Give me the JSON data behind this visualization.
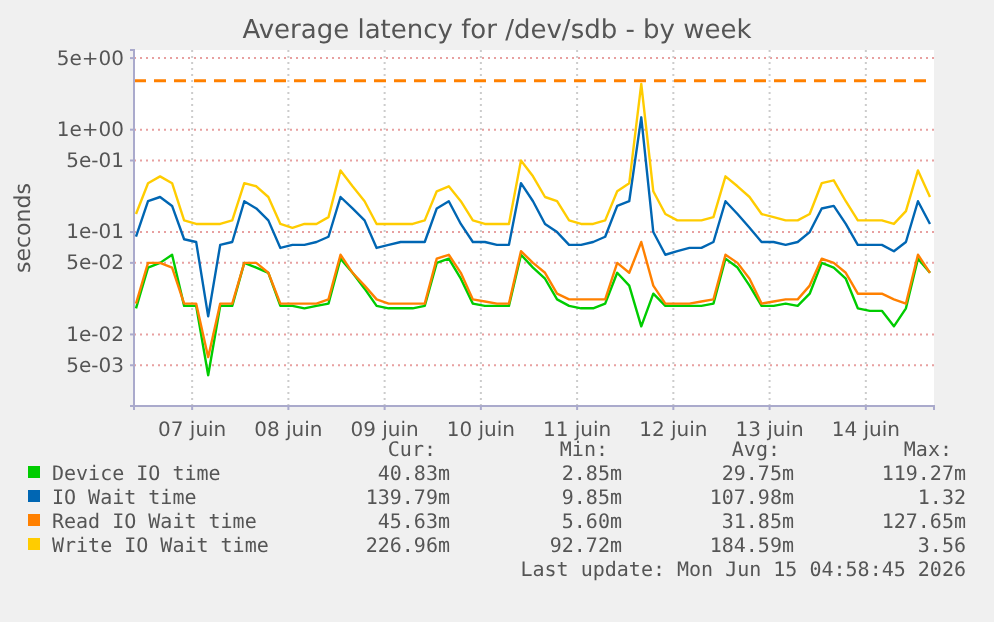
{
  "chart_data": {
    "type": "line",
    "title": "Average latency for /dev/sdb - by week",
    "ylabel": "seconds",
    "log": true,
    "grid": true,
    "legend": "bottom",
    "line_style": "solid",
    "marker": "none",
    "x": [
      "2026-06-06T22:00",
      "2026-06-07T01:00",
      "2026-06-07T04:00",
      "2026-06-07T07:00",
      "2026-06-07T10:00",
      "2026-06-07T13:00",
      "2026-06-07T16:00",
      "2026-06-07T19:00",
      "2026-06-07T22:00",
      "2026-06-08T01:00",
      "2026-06-08T04:00",
      "2026-06-08T07:00",
      "2026-06-08T10:00",
      "2026-06-08T13:00",
      "2026-06-08T16:00",
      "2026-06-08T19:00",
      "2026-06-08T22:00",
      "2026-06-09T01:00",
      "2026-06-09T04:00",
      "2026-06-09T07:00",
      "2026-06-09T10:00",
      "2026-06-09T13:00",
      "2026-06-09T16:00",
      "2026-06-09T19:00",
      "2026-06-09T22:00",
      "2026-06-10T01:00",
      "2026-06-10T04:00",
      "2026-06-10T07:00",
      "2026-06-10T10:00",
      "2026-06-10T13:00",
      "2026-06-10T16:00",
      "2026-06-10T19:00",
      "2026-06-10T22:00",
      "2026-06-11T01:00",
      "2026-06-11T04:00",
      "2026-06-11T07:00",
      "2026-06-11T10:00",
      "2026-06-11T13:00",
      "2026-06-11T16:00",
      "2026-06-11T19:00",
      "2026-06-11T22:00",
      "2026-06-12T01:00",
      "2026-06-12T04:00",
      "2026-06-12T07:00",
      "2026-06-12T10:00",
      "2026-06-12T13:00",
      "2026-06-12T16:00",
      "2026-06-12T19:00",
      "2026-06-12T22:00",
      "2026-06-13T01:00",
      "2026-06-13T04:00",
      "2026-06-13T07:00",
      "2026-06-13T10:00",
      "2026-06-13T13:00",
      "2026-06-13T16:00",
      "2026-06-13T19:00",
      "2026-06-13T22:00",
      "2026-06-14T01:00",
      "2026-06-14T04:00",
      "2026-06-14T07:00",
      "2026-06-14T10:00",
      "2026-06-14T13:00",
      "2026-06-14T16:00",
      "2026-06-14T19:00",
      "2026-06-14T22:00",
      "2026-06-15T01:00",
      "2026-06-15T04:00"
    ],
    "xlim": [
      "2026-06-06T21:30",
      "2026-06-15T05:00"
    ],
    "xticks": [
      {
        "value": "2026-06-07T12:00",
        "label": "07 juin"
      },
      {
        "value": "2026-06-08T12:00",
        "label": "08 juin"
      },
      {
        "value": "2026-06-09T12:00",
        "label": "09 juin"
      },
      {
        "value": "2026-06-10T12:00",
        "label": "10 juin"
      },
      {
        "value": "2026-06-11T12:00",
        "label": "11 juin"
      },
      {
        "value": "2026-06-12T12:00",
        "label": "12 juin"
      },
      {
        "value": "2026-06-13T12:00",
        "label": "13 juin"
      },
      {
        "value": "2026-06-14T12:00",
        "label": "14 juin"
      }
    ],
    "ylim": [
      0.002,
      6
    ],
    "yticks": [
      {
        "value": 5,
        "label": "5e+00"
      },
      {
        "value": 1,
        "label": "1e+00"
      },
      {
        "value": 0.5,
        "label": "5e-01"
      },
      {
        "value": 0.1,
        "label": "1e-01"
      },
      {
        "value": 0.05,
        "label": "5e-02"
      },
      {
        "value": 0.01,
        "label": "1e-02"
      },
      {
        "value": 0.005,
        "label": "5e-03"
      }
    ],
    "ref_lines": [
      {
        "axis": "y",
        "value": 3,
        "color": "#ff8000",
        "line_style": "dashed"
      }
    ],
    "series": [
      {
        "name": "Device IO time",
        "color": "#00cc00",
        "values": [
          0.018,
          0.045,
          0.05,
          0.06,
          0.019,
          0.019,
          0.004,
          0.019,
          0.019,
          0.05,
          0.045,
          0.04,
          0.019,
          0.019,
          0.018,
          0.019,
          0.02,
          0.055,
          0.04,
          0.028,
          0.019,
          0.018,
          0.018,
          0.018,
          0.019,
          0.05,
          0.055,
          0.035,
          0.02,
          0.019,
          0.019,
          0.019,
          0.06,
          0.045,
          0.035,
          0.022,
          0.019,
          0.018,
          0.018,
          0.02,
          0.04,
          0.03,
          0.012,
          0.025,
          0.019,
          0.019,
          0.019,
          0.019,
          0.02,
          0.055,
          0.045,
          0.03,
          0.019,
          0.019,
          0.02,
          0.019,
          0.025,
          0.05,
          0.045,
          0.035,
          0.018,
          0.017,
          0.017,
          0.012,
          0.018,
          0.055,
          0.04
        ]
      },
      {
        "name": "IO Wait time",
        "color": "#0066b3",
        "values": [
          0.09,
          0.2,
          0.22,
          0.18,
          0.085,
          0.08,
          0.015,
          0.075,
          0.08,
          0.2,
          0.17,
          0.13,
          0.07,
          0.075,
          0.075,
          0.08,
          0.09,
          0.22,
          0.17,
          0.13,
          0.07,
          0.075,
          0.08,
          0.08,
          0.08,
          0.17,
          0.2,
          0.12,
          0.08,
          0.08,
          0.075,
          0.075,
          0.3,
          0.2,
          0.12,
          0.1,
          0.075,
          0.075,
          0.08,
          0.09,
          0.18,
          0.2,
          1.32,
          0.1,
          0.06,
          0.065,
          0.07,
          0.07,
          0.08,
          0.2,
          0.15,
          0.11,
          0.08,
          0.08,
          0.075,
          0.08,
          0.1,
          0.17,
          0.18,
          0.12,
          0.075,
          0.075,
          0.075,
          0.065,
          0.08,
          0.2,
          0.12
        ]
      },
      {
        "name": "Read IO Wait time",
        "color": "#ff8000",
        "values": [
          0.02,
          0.05,
          0.05,
          0.045,
          0.02,
          0.02,
          0.006,
          0.02,
          0.02,
          0.05,
          0.05,
          0.04,
          0.02,
          0.02,
          0.02,
          0.02,
          0.022,
          0.06,
          0.04,
          0.03,
          0.022,
          0.02,
          0.02,
          0.02,
          0.02,
          0.055,
          0.06,
          0.04,
          0.022,
          0.021,
          0.02,
          0.02,
          0.065,
          0.05,
          0.04,
          0.025,
          0.022,
          0.022,
          0.022,
          0.022,
          0.05,
          0.04,
          0.08,
          0.03,
          0.02,
          0.02,
          0.02,
          0.021,
          0.022,
          0.06,
          0.05,
          0.035,
          0.02,
          0.021,
          0.022,
          0.022,
          0.03,
          0.055,
          0.05,
          0.04,
          0.025,
          0.025,
          0.025,
          0.022,
          0.02,
          0.06,
          0.04
        ]
      },
      {
        "name": "Write IO Wait time",
        "color": "#ffcc00",
        "values": [
          0.15,
          0.3,
          0.35,
          0.3,
          0.13,
          0.12,
          0.12,
          0.12,
          0.13,
          0.3,
          0.28,
          0.22,
          0.12,
          0.11,
          0.12,
          0.12,
          0.14,
          0.4,
          0.28,
          0.2,
          0.12,
          0.12,
          0.12,
          0.12,
          0.13,
          0.25,
          0.28,
          0.2,
          0.13,
          0.12,
          0.12,
          0.12,
          0.5,
          0.35,
          0.22,
          0.2,
          0.13,
          0.12,
          0.12,
          0.13,
          0.25,
          0.3,
          2.8,
          0.25,
          0.15,
          0.13,
          0.13,
          0.13,
          0.14,
          0.35,
          0.28,
          0.22,
          0.15,
          0.14,
          0.13,
          0.13,
          0.15,
          0.3,
          0.32,
          0.2,
          0.13,
          0.13,
          0.13,
          0.12,
          0.16,
          0.4,
          0.22
        ]
      }
    ],
    "annotations": [
      "Cur:",
      "Min:",
      "Avg:",
      "Max:",
      "40.83m",
      "2.85m",
      "29.75m",
      "119.27m",
      "139.79m",
      "9.85m",
      "107.98m",
      "1.32",
      "45.63m",
      "5.60m",
      "31.85m",
      "127.65m",
      "226.96m",
      "92.72m",
      "184.59m",
      "3.56",
      "Last update: Mon Jun 15 04:58:45 2026"
    ]
  }
}
